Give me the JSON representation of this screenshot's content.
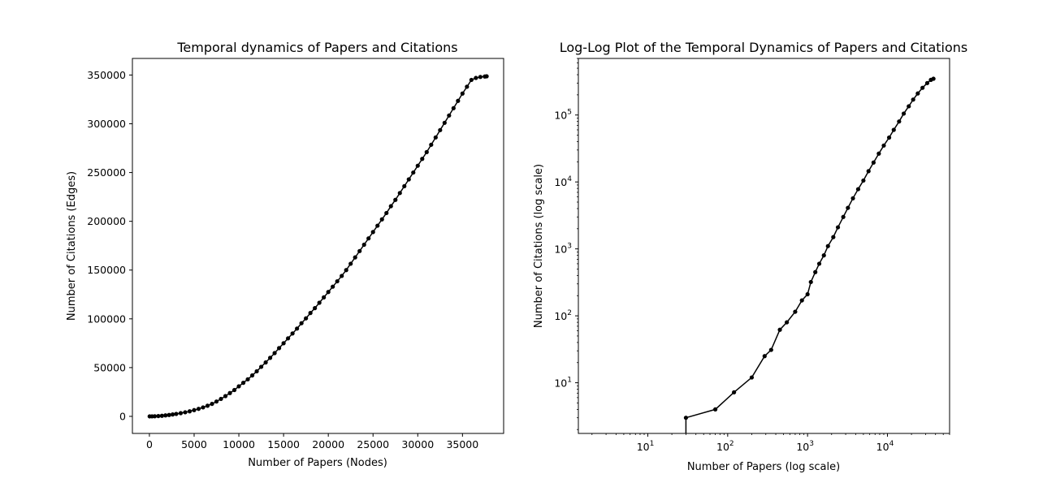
{
  "chart_data": [
    {
      "type": "line",
      "title": "Temporal dynamics of Papers and Citations",
      "xlabel": "Number of Papers (Nodes)",
      "ylabel": "Number of Citations (Edges)",
      "xlim": [
        -1900,
        39600
      ],
      "ylim": [
        -17500,
        367000
      ],
      "xticks": [
        "0",
        "5000",
        "10000",
        "15000",
        "20000",
        "25000",
        "30000",
        "35000"
      ],
      "yticks": [
        "0",
        "50000",
        "100000",
        "150000",
        "200000",
        "250000",
        "300000",
        "350000"
      ],
      "grid": false,
      "marker": "circle",
      "color": "#000000",
      "series": [
        {
          "x": [
            30,
            300,
            600,
            1000,
            1400,
            1800,
            2200,
            2600,
            3000,
            3500,
            4000,
            4500,
            5000,
            5500,
            6000,
            6500,
            7000,
            7500,
            8000,
            8500,
            9000,
            9500,
            10000,
            10500,
            11000,
            11500,
            12000,
            12500,
            13000,
            13500,
            14000,
            14500,
            15000,
            15500,
            16000,
            16500,
            17000,
            17500,
            18000,
            18500,
            19000,
            19500,
            20000,
            20500,
            21000,
            21500,
            22000,
            22500,
            23000,
            23500,
            24000,
            24500,
            25000,
            25500,
            26000,
            26500,
            27000,
            27500,
            28000,
            28500,
            29000,
            29500,
            30000,
            30500,
            31000,
            31500,
            32000,
            32500,
            33000,
            33500,
            34000,
            34500,
            35000,
            35500,
            36000,
            36500,
            37000,
            37500,
            37700
          ],
          "y": [
            3,
            25,
            110,
            320,
            620,
            1000,
            1450,
            1950,
            2500,
            3300,
            4200,
            5200,
            6400,
            7700,
            9200,
            10900,
            12800,
            15200,
            17900,
            20800,
            23900,
            27000,
            30800,
            34400,
            38000,
            42000,
            46200,
            50800,
            55300,
            60000,
            64900,
            70000,
            75000,
            80000,
            85000,
            90000,
            95500,
            100500,
            106000,
            111000,
            116500,
            122000,
            127500,
            133000,
            138500,
            144000,
            150000,
            156500,
            163000,
            169500,
            176000,
            182500,
            189000,
            195500,
            202000,
            208500,
            215500,
            222000,
            229000,
            236000,
            243000,
            250000,
            257000,
            264000,
            271000,
            278500,
            286000,
            293500,
            301000,
            308500,
            316000,
            323500,
            331000,
            338000,
            345000,
            347000,
            348000,
            348500,
            348700
          ]
        }
      ]
    },
    {
      "type": "line",
      "title": "Log-Log Plot of the Temporal Dynamics of Papers and Citations",
      "xlabel": "Number of Papers (log scale)",
      "ylabel": "Number of Citations (log scale)",
      "xscale": "log",
      "yscale": "log",
      "xlim": [
        1.35,
        60000
      ],
      "ylim": [
        1.75,
        700000
      ],
      "xticks": [
        {
          "base": "10",
          "exp": "1"
        },
        {
          "base": "10",
          "exp": "2"
        },
        {
          "base": "10",
          "exp": "3"
        },
        {
          "base": "10",
          "exp": "4"
        }
      ],
      "yticks": [
        {
          "base": "10",
          "exp": "1"
        },
        {
          "base": "10",
          "exp": "2"
        },
        {
          "base": "10",
          "exp": "3"
        },
        {
          "base": "10",
          "exp": "4"
        },
        {
          "base": "10",
          "exp": "5"
        }
      ],
      "grid": false,
      "marker": "circle",
      "color": "#000000",
      "series": [
        {
          "x": [
            30,
            30,
            70,
            120,
            200,
            290,
            350,
            450,
            550,
            700,
            850,
            1000,
            1100,
            1250,
            1400,
            1600,
            1800,
            2100,
            2400,
            2800,
            3200,
            3700,
            4300,
            5000,
            5800,
            6700,
            7800,
            9000,
            10500,
            12000,
            14000,
            16000,
            18500,
            21000,
            24000,
            27500,
            31500,
            35000,
            37700
          ],
          "y": [
            1,
            3,
            4,
            7.2,
            12,
            25,
            31,
            62,
            80,
            115,
            170,
            210,
            320,
            450,
            600,
            800,
            1100,
            1500,
            2100,
            3000,
            4100,
            5700,
            7800,
            10500,
            14500,
            19500,
            26500,
            35000,
            46000,
            60000,
            80000,
            105000,
            135000,
            170000,
            210000,
            255000,
            300000,
            335000,
            348000
          ]
        }
      ]
    }
  ]
}
